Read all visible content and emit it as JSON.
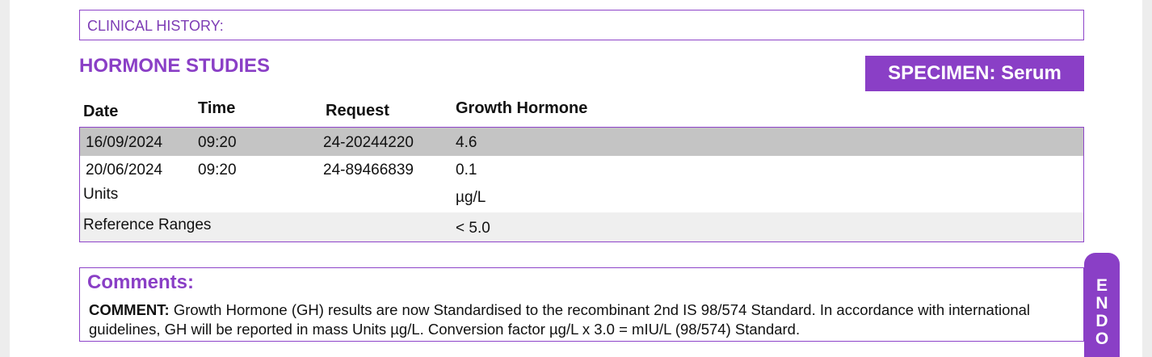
{
  "clinical_history": {
    "label": "CLINICAL HISTORY:"
  },
  "section": {
    "title": "HORMONE STUDIES"
  },
  "specimen": {
    "label": "SPECIMEN: Serum"
  },
  "table": {
    "headers": {
      "date": "Date",
      "time": "Time",
      "request": "Request",
      "test": "Growth Hormone"
    },
    "rows": [
      {
        "date": "16/09/2024",
        "time": "09:20",
        "request": "24-20244220",
        "value": "4.6"
      },
      {
        "date": "20/06/2024",
        "time": "09:20",
        "request": "24-89466839",
        "value": "0.1"
      }
    ],
    "units": {
      "label": "Units",
      "value": "µg/L"
    },
    "reference": {
      "label": "Reference Ranges",
      "value": "< 5.0"
    }
  },
  "comments": {
    "title": "Comments:",
    "lead": "COMMENT:",
    "body": " Growth Hormone (GH) results are now Standardised to the recombinant 2nd IS 98/574 Standard. In accordance with international guidelines, GH will be reported in mass Units µg/L. Conversion factor µg/L x 3.0 = mIU/L (98/574) Standard."
  },
  "side_tab": {
    "letters": [
      "E",
      "N",
      "D",
      "O"
    ]
  },
  "colors": {
    "accent": "#8a3fc6",
    "highlight_row": "#c4c4c4",
    "light_row": "#efefef"
  }
}
